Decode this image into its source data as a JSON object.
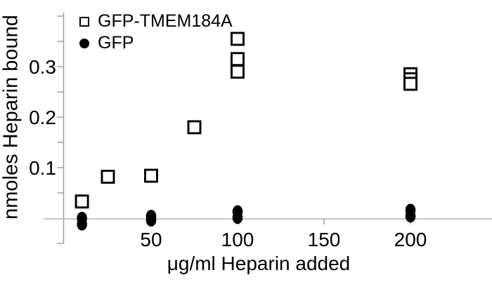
{
  "figure": {
    "background": "#ffffff",
    "text_color": "#000000",
    "axis_color": "#9a9a9a",
    "gridline_color": "#b2b2b2",
    "marker_color": "#000000"
  },
  "legend": {
    "position": "top-left-inside",
    "items": [
      {
        "id": "gfp-tmem184a",
        "label": "GFP-TMEM184A",
        "marker": "open-square"
      },
      {
        "id": "gfp",
        "label": "GFP",
        "marker": "filled-circle"
      }
    ]
  },
  "chart_data": {
    "type": "scatter",
    "title": "",
    "xlabel": "μg/ml Heparin added",
    "ylabel": "nmoles Heparin bound",
    "xlim": [
      0,
      247
    ],
    "ylim": [
      -0.05,
      0.41
    ],
    "grid": "zero-line-only",
    "x_ticks": [
      50,
      100,
      150,
      200
    ],
    "y_ticks_labeled": [
      0.1,
      0.2,
      0.3
    ],
    "y_ticks_minor": [
      -0.05,
      0.05,
      0.1,
      0.15,
      0.2,
      0.25,
      0.3,
      0.35,
      0.4
    ],
    "series": [
      {
        "name": "GFP-TMEM184A",
        "marker": "open-square",
        "points": [
          [
            10,
            0.033
          ],
          [
            25,
            0.082
          ],
          [
            50,
            0.084
          ],
          [
            75,
            0.18
          ],
          [
            100,
            0.355
          ],
          [
            100,
            0.315
          ],
          [
            100,
            0.29
          ],
          [
            200,
            0.285
          ],
          [
            200,
            0.275
          ],
          [
            200,
            0.266
          ]
        ]
      },
      {
        "name": "GFP",
        "marker": "filled-circle",
        "points": [
          [
            10,
            0.0
          ],
          [
            10,
            -0.012
          ],
          [
            50,
            0.004
          ],
          [
            50,
            -0.004
          ],
          [
            100,
            0.013
          ],
          [
            100,
            0.001
          ],
          [
            200,
            0.016
          ],
          [
            200,
            0.004
          ]
        ]
      }
    ]
  }
}
